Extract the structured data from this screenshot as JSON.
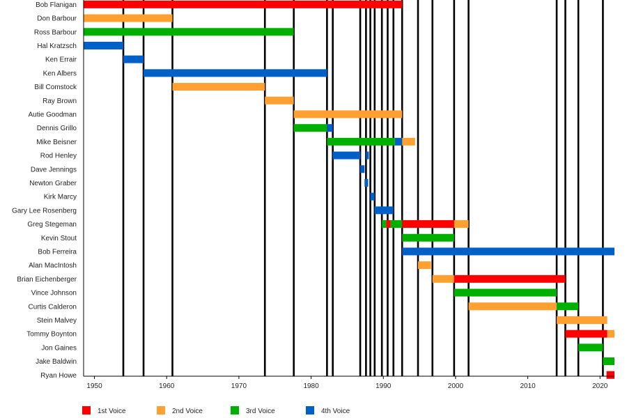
{
  "chart_data": {
    "type": "timeline",
    "x_range": [
      1948.5,
      2022
    ],
    "x_ticks": [
      1950,
      1960,
      1970,
      1980,
      1990,
      2000,
      2010,
      2020
    ],
    "legend_position": "bottom-left",
    "legend": [
      {
        "key": "1st",
        "label": "1st Voice",
        "color": "#ff0000"
      },
      {
        "key": "2nd",
        "label": "2nd Voice",
        "color": "#ffa030"
      },
      {
        "key": "3rd",
        "label": "3rd Voice",
        "color": "#00b000"
      },
      {
        "key": "4th",
        "label": "4th Voice",
        "color": "#0060c8"
      }
    ],
    "vertical_lines": [
      1954,
      1956.8,
      1960.8,
      1973.6,
      1977.6,
      1982.2,
      1983,
      1986.8,
      1987.6,
      1988.2,
      1988.8,
      1989.8,
      1990.6,
      1991.4,
      1992.6,
      1994.8,
      1996.8,
      1999.8,
      2001.8,
      2014,
      2015.2,
      2017,
      2020.4
    ],
    "members": [
      {
        "name": "Bob Flanigan",
        "bars": [
          {
            "start": 1948.5,
            "end": 1992.6,
            "voice": "1st"
          }
        ]
      },
      {
        "name": "Don Barbour",
        "bars": [
          {
            "start": 1948.5,
            "end": 1960.8,
            "voice": "2nd"
          }
        ]
      },
      {
        "name": "Ross Barbour",
        "bars": [
          {
            "start": 1948.5,
            "end": 1977.6,
            "voice": "3rd"
          }
        ]
      },
      {
        "name": "Hal Kratzsch",
        "bars": [
          {
            "start": 1948.5,
            "end": 1954,
            "voice": "4th"
          }
        ]
      },
      {
        "name": "Ken Errair",
        "bars": [
          {
            "start": 1954,
            "end": 1956.8,
            "voice": "4th"
          }
        ]
      },
      {
        "name": "Ken Albers",
        "bars": [
          {
            "start": 1956.8,
            "end": 1982.2,
            "voice": "4th"
          }
        ]
      },
      {
        "name": "Bill Comstock",
        "bars": [
          {
            "start": 1960.8,
            "end": 1973.6,
            "voice": "2nd"
          }
        ]
      },
      {
        "name": "Ray Brown",
        "bars": [
          {
            "start": 1973.6,
            "end": 1977.6,
            "voice": "2nd"
          }
        ]
      },
      {
        "name": "Autie Goodman",
        "bars": [
          {
            "start": 1977.6,
            "end": 1992.6,
            "voice": "2nd"
          }
        ]
      },
      {
        "name": "Dennis Grillo",
        "bars": [
          {
            "start": 1977.6,
            "end": 1982.2,
            "voice": "3rd"
          },
          {
            "start": 1982.2,
            "end": 1983,
            "voice": "4th"
          }
        ]
      },
      {
        "name": "Mike Beisner",
        "bars": [
          {
            "start": 1982.2,
            "end": 1991.6,
            "voice": "3rd"
          },
          {
            "start": 1991.6,
            "end": 1992.6,
            "voice": "4th"
          },
          {
            "start": 1992.6,
            "end": 1994.4,
            "voice": "2nd"
          }
        ]
      },
      {
        "name": "Rod Henley",
        "bars": [
          {
            "start": 1983,
            "end": 1986.8,
            "voice": "4th"
          },
          {
            "start": 1987.6,
            "end": 1988,
            "voice": "4th"
          }
        ]
      },
      {
        "name": "Dave Jennings",
        "bars": [
          {
            "start": 1986.8,
            "end": 1987.4,
            "voice": "4th"
          }
        ]
      },
      {
        "name": "Newton Graber",
        "bars": [
          {
            "start": 1987.4,
            "end": 1987.9,
            "voice": "4th"
          }
        ]
      },
      {
        "name": "Kirk Marcy",
        "bars": [
          {
            "start": 1988.2,
            "end": 1988.8,
            "voice": "4th"
          }
        ]
      },
      {
        "name": "Gary Lee Rosenberg",
        "bars": [
          {
            "start": 1988.8,
            "end": 1991.4,
            "voice": "4th"
          }
        ]
      },
      {
        "name": "Greg Stegeman",
        "bars": [
          {
            "start": 1989.8,
            "end": 1990.4,
            "voice": "3rd"
          },
          {
            "start": 1990.4,
            "end": 1991,
            "voice": "1st"
          },
          {
            "start": 1991,
            "end": 1992.6,
            "voice": "3rd"
          },
          {
            "start": 1992.6,
            "end": 1999.8,
            "voice": "1st"
          },
          {
            "start": 1999.8,
            "end": 2001.8,
            "voice": "2nd"
          }
        ]
      },
      {
        "name": "Kevin Stout",
        "bars": [
          {
            "start": 1992.6,
            "end": 1999.8,
            "voice": "3rd"
          }
        ]
      },
      {
        "name": "Bob Ferreira",
        "bars": [
          {
            "start": 1992.6,
            "end": 2022,
            "voice": "4th"
          }
        ]
      },
      {
        "name": "Alan MacIntosh",
        "bars": [
          {
            "start": 1994.8,
            "end": 1996.6,
            "voice": "2nd"
          }
        ]
      },
      {
        "name": "Brian Eichenberger",
        "bars": [
          {
            "start": 1996.8,
            "end": 1999.8,
            "voice": "2nd"
          },
          {
            "start": 1999.8,
            "end": 2015.2,
            "voice": "1st"
          }
        ]
      },
      {
        "name": "Vince Johnson",
        "bars": [
          {
            "start": 1999.8,
            "end": 2014,
            "voice": "3rd"
          }
        ]
      },
      {
        "name": "Curtis Calderon",
        "bars": [
          {
            "start": 2001.8,
            "end": 2014,
            "voice": "2nd"
          },
          {
            "start": 2014,
            "end": 2017,
            "voice": "3rd"
          }
        ]
      },
      {
        "name": "Stein Malvey",
        "bars": [
          {
            "start": 2014,
            "end": 2021,
            "voice": "2nd"
          }
        ]
      },
      {
        "name": "Tommy Boynton",
        "bars": [
          {
            "start": 2015.2,
            "end": 2021,
            "voice": "1st"
          },
          {
            "start": 2021,
            "end": 2022,
            "voice": "2nd"
          }
        ]
      },
      {
        "name": "Jon Gaines",
        "bars": [
          {
            "start": 2017,
            "end": 2020.4,
            "voice": "3rd"
          }
        ]
      },
      {
        "name": "Jake Baldwin",
        "bars": [
          {
            "start": 2020.4,
            "end": 2022,
            "voice": "3rd"
          }
        ]
      },
      {
        "name": "Ryan Howe",
        "bars": [
          {
            "start": 2020.9,
            "end": 2022,
            "voice": "1st"
          }
        ]
      }
    ]
  }
}
